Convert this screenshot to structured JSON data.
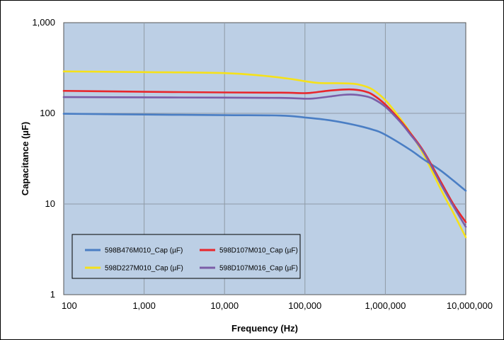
{
  "chart_data": {
    "type": "line",
    "title": "",
    "xlabel": "Frequency (Hz)",
    "ylabel": "Capacitance (µF)",
    "x_scale": "log",
    "y_scale": "log",
    "xlim": [
      100,
      10000000
    ],
    "ylim": [
      1,
      1000
    ],
    "x_ticks": [
      100,
      1000,
      10000,
      100000,
      1000000,
      10000000
    ],
    "x_tick_labels": [
      "100",
      "1,000",
      "10,000",
      "100,000",
      "1,000,000",
      "10,000,000"
    ],
    "y_ticks": [
      1,
      10,
      100,
      1000
    ],
    "y_tick_labels": [
      "1",
      "10",
      "100",
      "1,000"
    ],
    "grid": true,
    "plot_background": "#bccfe5",
    "legend_position": "bottom-left",
    "series": [
      {
        "name": "598B476M010_Cap (µF)",
        "color": "#4a7ec4",
        "x": [
          100,
          1000,
          10000,
          50000,
          100000,
          200000,
          400000,
          700000,
          1000000,
          2000000,
          3000000,
          5000000,
          10000000
        ],
        "y": [
          99,
          97,
          95.5,
          94.5,
          90,
          84,
          75,
          66,
          58,
          40,
          31,
          23,
          14
        ]
      },
      {
        "name": "598D107M010_Cap (µF)",
        "color": "#e8262b",
        "x": [
          100,
          1000,
          10000,
          50000,
          100000,
          130000,
          200000,
          300000,
          400000,
          550000,
          700000,
          1000000,
          1500000,
          2000000,
          3000000,
          5000000,
          7000000,
          10000000
        ],
        "y": [
          177,
          173,
          170,
          169,
          167,
          170,
          178,
          183,
          183,
          175,
          160,
          125,
          85,
          62,
          38,
          17,
          10,
          6.3
        ]
      },
      {
        "name": "598D227M010_Cap (µF)",
        "color": "#f5e11a",
        "x": [
          100,
          1000,
          10000,
          30000,
          70000,
          100000,
          150000,
          250000,
          400000,
          550000,
          700000,
          1000000,
          1500000,
          2000000,
          3000000,
          5000000,
          7000000,
          10000000
        ],
        "y": [
          290,
          285,
          278,
          260,
          238,
          226,
          216,
          215,
          212,
          200,
          182,
          140,
          90,
          63,
          35,
          14,
          8,
          4.3
        ]
      },
      {
        "name": "598D107M016_Cap (µF)",
        "color": "#7b5ea8",
        "x": [
          100,
          1000,
          10000,
          50000,
          100000,
          130000,
          200000,
          300000,
          400000,
          550000,
          700000,
          1000000,
          1500000,
          2000000,
          3000000,
          5000000,
          7000000,
          10000000
        ],
        "y": [
          151,
          150,
          149,
          148,
          145,
          146,
          153,
          160,
          161,
          155,
          145,
          118,
          82,
          60,
          37,
          16,
          9.5,
          5.6
        ]
      }
    ],
    "legend_order": [
      0,
      1,
      2,
      3
    ]
  }
}
